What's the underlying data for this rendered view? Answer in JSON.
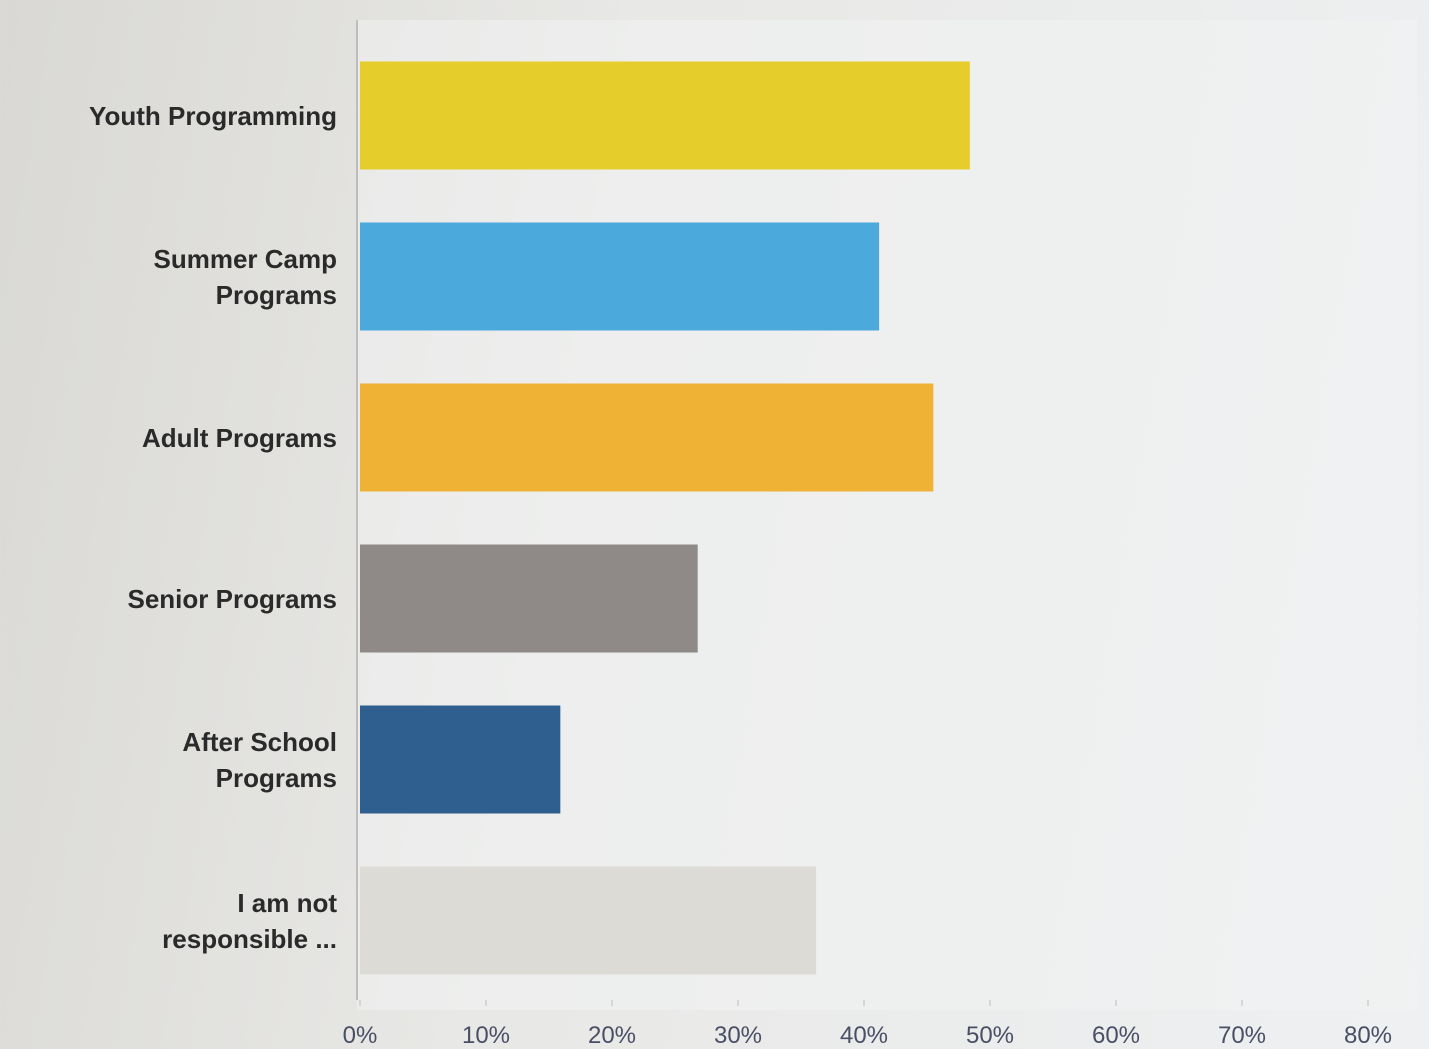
{
  "chart_data": {
    "type": "hbar",
    "categories": [
      "Youth Programming",
      "Summer Camp Programs",
      "Adult Programs",
      "Senior Programs",
      "After School Programs",
      "I am not responsible ..."
    ],
    "series": [
      {
        "colors": [
          "#e5cd2c",
          "#4ba9dc",
          "#f0b234",
          "#8f8a88",
          "#2f5f8e",
          "#dddbd6"
        ],
        "values": [
          48.4,
          41.2,
          45.5,
          26.8,
          15.9,
          36.2
        ]
      }
    ],
    "xlim": [
      0,
      80
    ],
    "xticks": [
      {
        "value": 0,
        "label": "0%"
      },
      {
        "value": 10,
        "label": "10%"
      },
      {
        "value": 20,
        "label": "20%"
      },
      {
        "value": 30,
        "label": "30%"
      },
      {
        "value": 40,
        "label": "40%"
      },
      {
        "value": 50,
        "label": "50%"
      },
      {
        "value": 60,
        "label": "60%"
      },
      {
        "value": 70,
        "label": "70%"
      },
      {
        "value": 80,
        "label": "80%"
      }
    ],
    "grid": false
  }
}
